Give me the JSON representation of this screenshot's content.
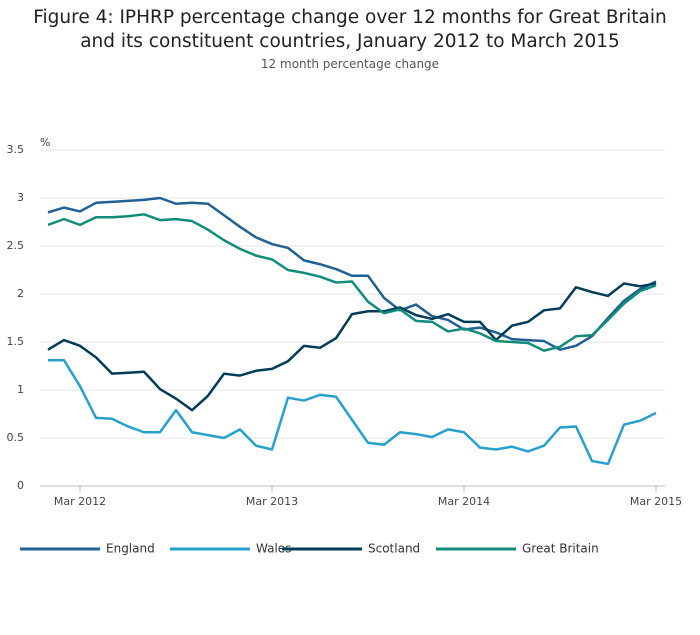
{
  "chart_data": {
    "type": "line",
    "title": "Figure 4: IPHRP percentage change over 12 months for Great Britain and its constituent countries, January 2012 to March 2015",
    "subtitle": "12 month percentage change",
    "y_label": "%",
    "categories": [
      null,
      null,
      "Mar 2012",
      null,
      null,
      null,
      null,
      null,
      null,
      null,
      null,
      null,
      null,
      null,
      "Mar 2013",
      null,
      null,
      null,
      null,
      null,
      null,
      null,
      null,
      null,
      null,
      null,
      "Mar 2014",
      null,
      null,
      null,
      null,
      null,
      null,
      null,
      null,
      null,
      null,
      null,
      "Mar 2015"
    ],
    "series": [
      {
        "name": "England",
        "color": "#206095",
        "values": [
          2.85,
          2.9,
          2.86,
          2.95,
          2.96,
          2.97,
          2.98,
          3.0,
          2.94,
          2.95,
          2.94,
          2.82,
          2.7,
          2.59,
          2.52,
          2.48,
          2.35,
          2.31,
          2.26,
          2.19,
          2.19,
          1.96,
          1.83,
          1.89,
          1.77,
          1.73,
          1.63,
          1.65,
          1.6,
          1.53,
          1.52,
          1.51,
          1.42,
          1.46,
          1.56,
          1.75,
          1.93,
          2.05,
          2.13
        ]
      },
      {
        "name": "Wales",
        "color": "#27a0cc",
        "values": [
          1.31,
          1.31,
          1.04,
          0.71,
          0.7,
          0.62,
          0.56,
          0.56,
          0.79,
          0.56,
          0.53,
          0.5,
          0.59,
          0.42,
          0.38,
          0.92,
          0.89,
          0.95,
          0.93,
          0.69,
          0.45,
          0.43,
          0.56,
          0.54,
          0.51,
          0.59,
          0.56,
          0.4,
          0.38,
          0.41,
          0.36,
          0.42,
          0.61,
          0.62,
          0.26,
          0.23,
          0.64,
          0.68,
          0.76
        ]
      },
      {
        "name": "Scotland",
        "color": "#003c57",
        "values": [
          1.42,
          1.52,
          1.46,
          1.34,
          1.17,
          1.18,
          1.19,
          1.01,
          0.91,
          0.79,
          0.94,
          1.17,
          1.15,
          1.2,
          1.22,
          1.3,
          1.46,
          1.44,
          1.54,
          1.79,
          1.82,
          1.82,
          1.86,
          1.78,
          1.74,
          1.79,
          1.71,
          1.71,
          1.52,
          1.67,
          1.71,
          1.83,
          1.85,
          2.07,
          2.02,
          1.98,
          2.11,
          2.08,
          2.11
        ]
      },
      {
        "name": "Great Britain",
        "color": "#118c7b",
        "values": [
          2.72,
          2.78,
          2.72,
          2.8,
          2.8,
          2.81,
          2.83,
          2.77,
          2.78,
          2.76,
          2.67,
          2.56,
          2.47,
          2.4,
          2.36,
          2.25,
          2.22,
          2.18,
          2.12,
          2.13,
          1.92,
          1.8,
          1.84,
          1.72,
          1.71,
          1.61,
          1.64,
          1.59,
          1.51,
          1.5,
          1.49,
          1.41,
          1.45,
          1.56,
          1.57,
          1.73,
          1.9,
          2.03,
          2.09
        ]
      }
    ],
    "ylim": [
      0,
      3.5
    ],
    "yticks": [
      0,
      0.5,
      1,
      1.5,
      2,
      2.5,
      3,
      3.5
    ],
    "grid": true,
    "legend": "bottom"
  }
}
